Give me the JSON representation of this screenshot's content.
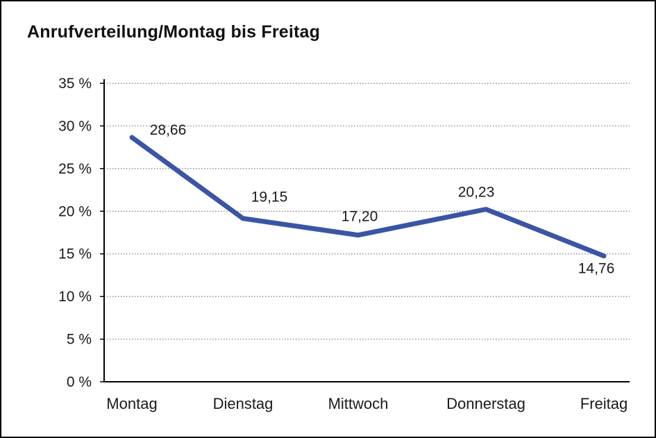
{
  "title": "Anrufverteilung/Montag bis Freitag",
  "chart_data": {
    "type": "line",
    "title": "Anrufverteilung/Montag bis Freitag",
    "categories": [
      "Montag",
      "Dienstag",
      "Mittwoch",
      "Donnerstag",
      "Freitag"
    ],
    "series": [
      {
        "name": "Anrufverteilung",
        "values": [
          28.66,
          19.15,
          17.2,
          20.23,
          14.76
        ],
        "value_labels": [
          "28,66",
          "19,15",
          "17,20",
          "20,23",
          "14,76"
        ],
        "color": "#3A55A4"
      }
    ],
    "xlabel": "",
    "ylabel": "",
    "ylim": [
      0,
      35
    ],
    "y_ticks": [
      {
        "value": 0,
        "label": "0 %"
      },
      {
        "value": 5,
        "label": "5 %"
      },
      {
        "value": 10,
        "label": "10 %"
      },
      {
        "value": 15,
        "label": "15 %"
      },
      {
        "value": 20,
        "label": "20 %"
      },
      {
        "value": 25,
        "label": "25 %"
      },
      {
        "value": 30,
        "label": "30 %"
      },
      {
        "value": 35,
        "label": "35 %"
      }
    ],
    "grid": "horizontal-dotted",
    "legend": "none",
    "colors": {
      "line": "#3A55A4",
      "axis": "#000000",
      "gridline": "#777777",
      "text": "#1a1a1a"
    }
  }
}
